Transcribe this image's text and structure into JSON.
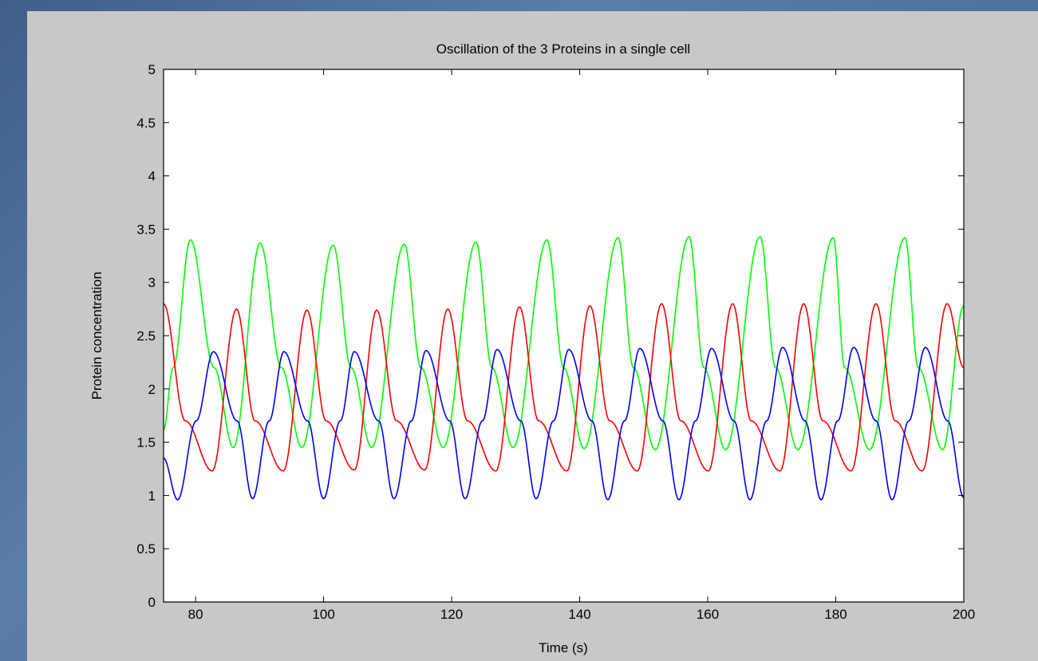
{
  "colors": {
    "background": "#4b6d96",
    "figure": "#c8c8c8",
    "axes": "#ffffff"
  },
  "chart_data": {
    "type": "line",
    "title": "Oscillation of the 3 Proteins in a single cell",
    "xlabel": "Time (s)",
    "ylabel": "Protein concentration",
    "xlim": [
      75,
      200
    ],
    "ylim": [
      0,
      5
    ],
    "grid": false,
    "legend": "none",
    "x_ticks": [
      80,
      100,
      120,
      140,
      160,
      180,
      200
    ],
    "x_tick_labels": [
      "80",
      "100",
      "120",
      "140",
      "160",
      "180",
      "200"
    ],
    "y_ticks": [
      0,
      0.5,
      1,
      1.5,
      2,
      2.5,
      3,
      3.5,
      4,
      4.5,
      5
    ],
    "y_tick_labels": [
      "0",
      "0.5",
      "1",
      "1.5",
      "2",
      "2.5",
      "3",
      "3.5",
      "4",
      "4.5",
      "5"
    ],
    "series": [
      {
        "color": "#00ff00",
        "x": [
          75,
          76.5,
          79.2,
          82.9,
          85.9,
          90.1,
          93.4,
          96.6,
          101.5,
          104.3,
          107.5,
          112.6,
          115.2,
          118.7,
          123.8,
          126.3,
          129.6,
          134.9,
          137.5,
          140.7,
          146.0,
          148.4,
          151.8,
          157.1,
          159.4,
          162.8,
          168.2,
          170.6,
          174.1,
          179.6,
          181.4,
          185.3,
          190.8,
          192.9,
          196.7,
          200
        ],
        "y": [
          1.62,
          2.2,
          3.4,
          2.2,
          1.45,
          3.37,
          2.2,
          1.45,
          3.35,
          2.2,
          1.45,
          3.36,
          2.2,
          1.45,
          3.38,
          2.2,
          1.45,
          3.4,
          2.2,
          1.44,
          3.42,
          2.2,
          1.43,
          3.43,
          2.2,
          1.43,
          3.43,
          2.2,
          1.43,
          3.42,
          2.2,
          1.43,
          3.42,
          2.2,
          1.43,
          2.78
        ]
      },
      {
        "color": "#ff0000",
        "x": [
          75,
          78.4,
          82.6,
          86.4,
          89.3,
          93.7,
          97.4,
          100.4,
          104.8,
          108.3,
          111.4,
          115.8,
          119.4,
          122.5,
          126.9,
          130.6,
          133.6,
          138.0,
          141.6,
          144.7,
          149.0,
          152.8,
          155.8,
          160.1,
          163.9,
          166.8,
          171.3,
          175.0,
          178.0,
          182.4,
          186.3,
          189.3,
          193.5,
          197.4,
          200
        ],
        "y": [
          2.8,
          1.7,
          1.23,
          2.75,
          1.7,
          1.23,
          2.74,
          1.7,
          1.24,
          2.74,
          1.7,
          1.24,
          2.75,
          1.7,
          1.23,
          2.77,
          1.7,
          1.23,
          2.78,
          1.7,
          1.23,
          2.8,
          1.7,
          1.23,
          2.8,
          1.7,
          1.23,
          2.8,
          1.7,
          1.23,
          2.8,
          1.7,
          1.23,
          2.8,
          2.2
        ]
      },
      {
        "color": "#0000ff",
        "x": [
          75,
          77.2,
          80.1,
          82.8,
          86.5,
          88.9,
          91.5,
          93.8,
          97.5,
          100.0,
          102.6,
          104.8,
          108.6,
          111.0,
          113.7,
          116.0,
          119.7,
          122.1,
          124.8,
          127.1,
          130.8,
          133.2,
          135.9,
          138.3,
          141.9,
          144.4,
          147.0,
          149.4,
          153.0,
          155.5,
          158.1,
          160.6,
          164.1,
          166.6,
          169.2,
          171.7,
          175.2,
          177.7,
          180.3,
          182.8,
          186.3,
          188.8,
          191.4,
          194.0,
          197.5,
          200
        ],
        "y": [
          1.35,
          0.96,
          1.7,
          2.35,
          1.7,
          0.97,
          1.7,
          2.35,
          1.7,
          0.97,
          1.7,
          2.35,
          1.7,
          0.97,
          1.7,
          2.36,
          1.7,
          0.97,
          1.7,
          2.37,
          1.7,
          0.97,
          1.7,
          2.37,
          1.7,
          0.96,
          1.7,
          2.38,
          1.7,
          0.96,
          1.7,
          2.38,
          1.7,
          0.96,
          1.7,
          2.39,
          1.7,
          0.96,
          1.7,
          2.39,
          1.7,
          0.96,
          1.7,
          2.39,
          1.7,
          0.98
        ]
      }
    ]
  }
}
